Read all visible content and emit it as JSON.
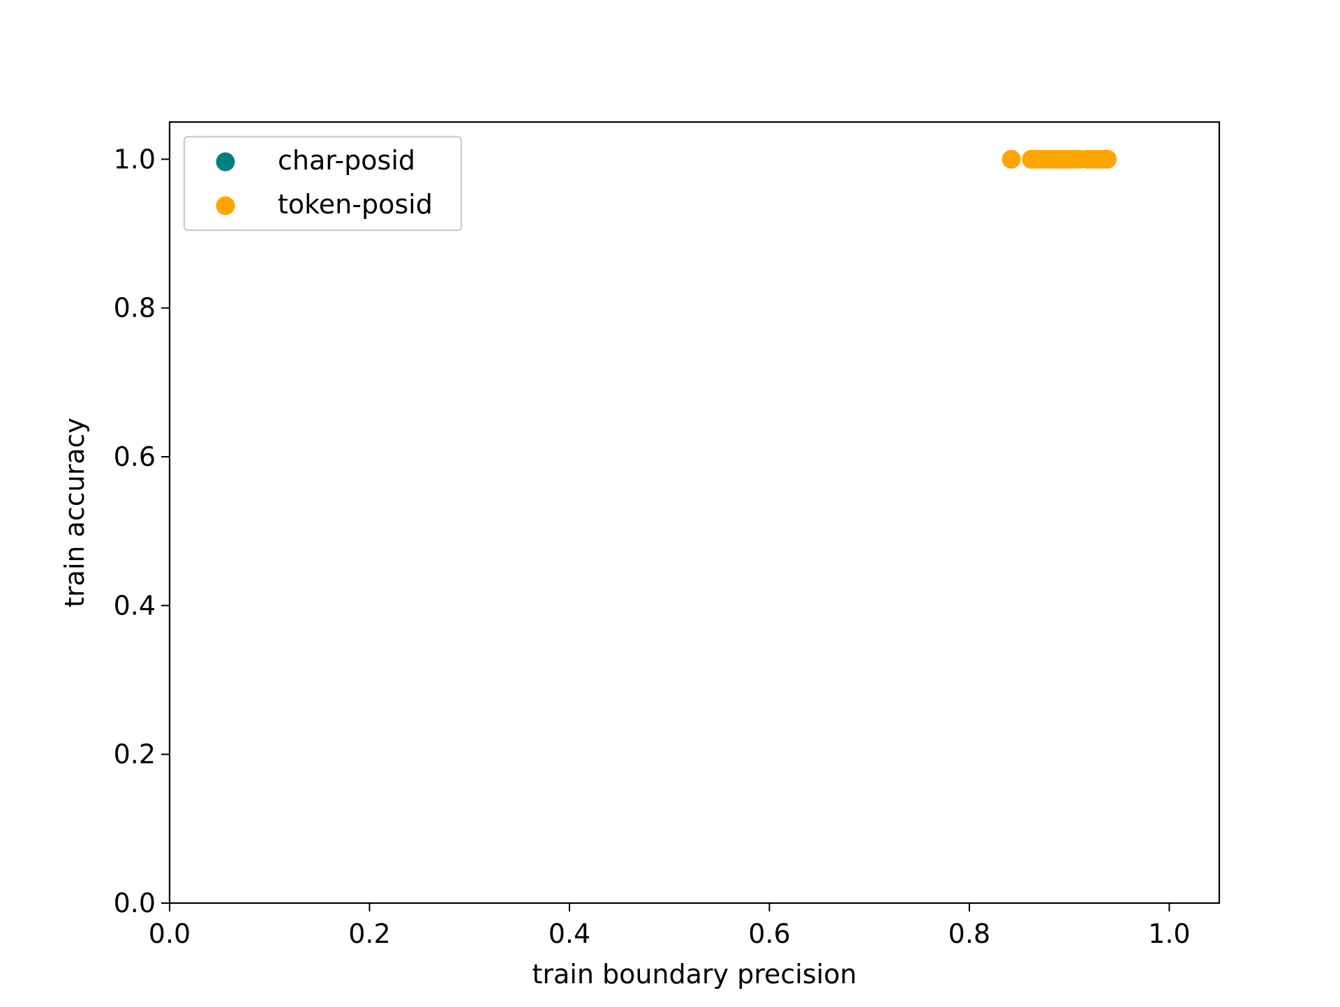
{
  "chart_data": {
    "type": "scatter",
    "title": "",
    "xlabel": "train boundary precision",
    "ylabel": "train accuracy",
    "xlim": [
      0.0,
      1.05
    ],
    "ylim": [
      0.0,
      1.05
    ],
    "xticks": [
      "0.0",
      "0.2",
      "0.4",
      "0.6",
      "0.8",
      "1.0"
    ],
    "yticks": [
      "0.0",
      "0.2",
      "0.4",
      "0.6",
      "0.8",
      "1.0"
    ],
    "grid": false,
    "legend_position": "upper-left",
    "series": [
      {
        "name": "char-posid",
        "color": "#008080",
        "points": []
      },
      {
        "name": "token-posid",
        "color": "#FFA500",
        "points": [
          {
            "x": 0.842,
            "y": 1.0
          },
          {
            "x": 0.862,
            "y": 1.0
          },
          {
            "x": 0.866,
            "y": 1.0
          },
          {
            "x": 0.87,
            "y": 1.0
          },
          {
            "x": 0.874,
            "y": 1.0
          },
          {
            "x": 0.878,
            "y": 1.0
          },
          {
            "x": 0.882,
            "y": 1.0
          },
          {
            "x": 0.886,
            "y": 1.0
          },
          {
            "x": 0.89,
            "y": 1.0
          },
          {
            "x": 0.894,
            "y": 1.0
          },
          {
            "x": 0.898,
            "y": 1.0
          },
          {
            "x": 0.902,
            "y": 1.0
          },
          {
            "x": 0.906,
            "y": 1.0
          },
          {
            "x": 0.91,
            "y": 1.0
          },
          {
            "x": 0.918,
            "y": 1.0
          },
          {
            "x": 0.922,
            "y": 1.0
          },
          {
            "x": 0.926,
            "y": 1.0
          },
          {
            "x": 0.93,
            "y": 1.0
          },
          {
            "x": 0.934,
            "y": 1.0
          },
          {
            "x": 0.938,
            "y": 1.0
          }
        ]
      }
    ]
  }
}
